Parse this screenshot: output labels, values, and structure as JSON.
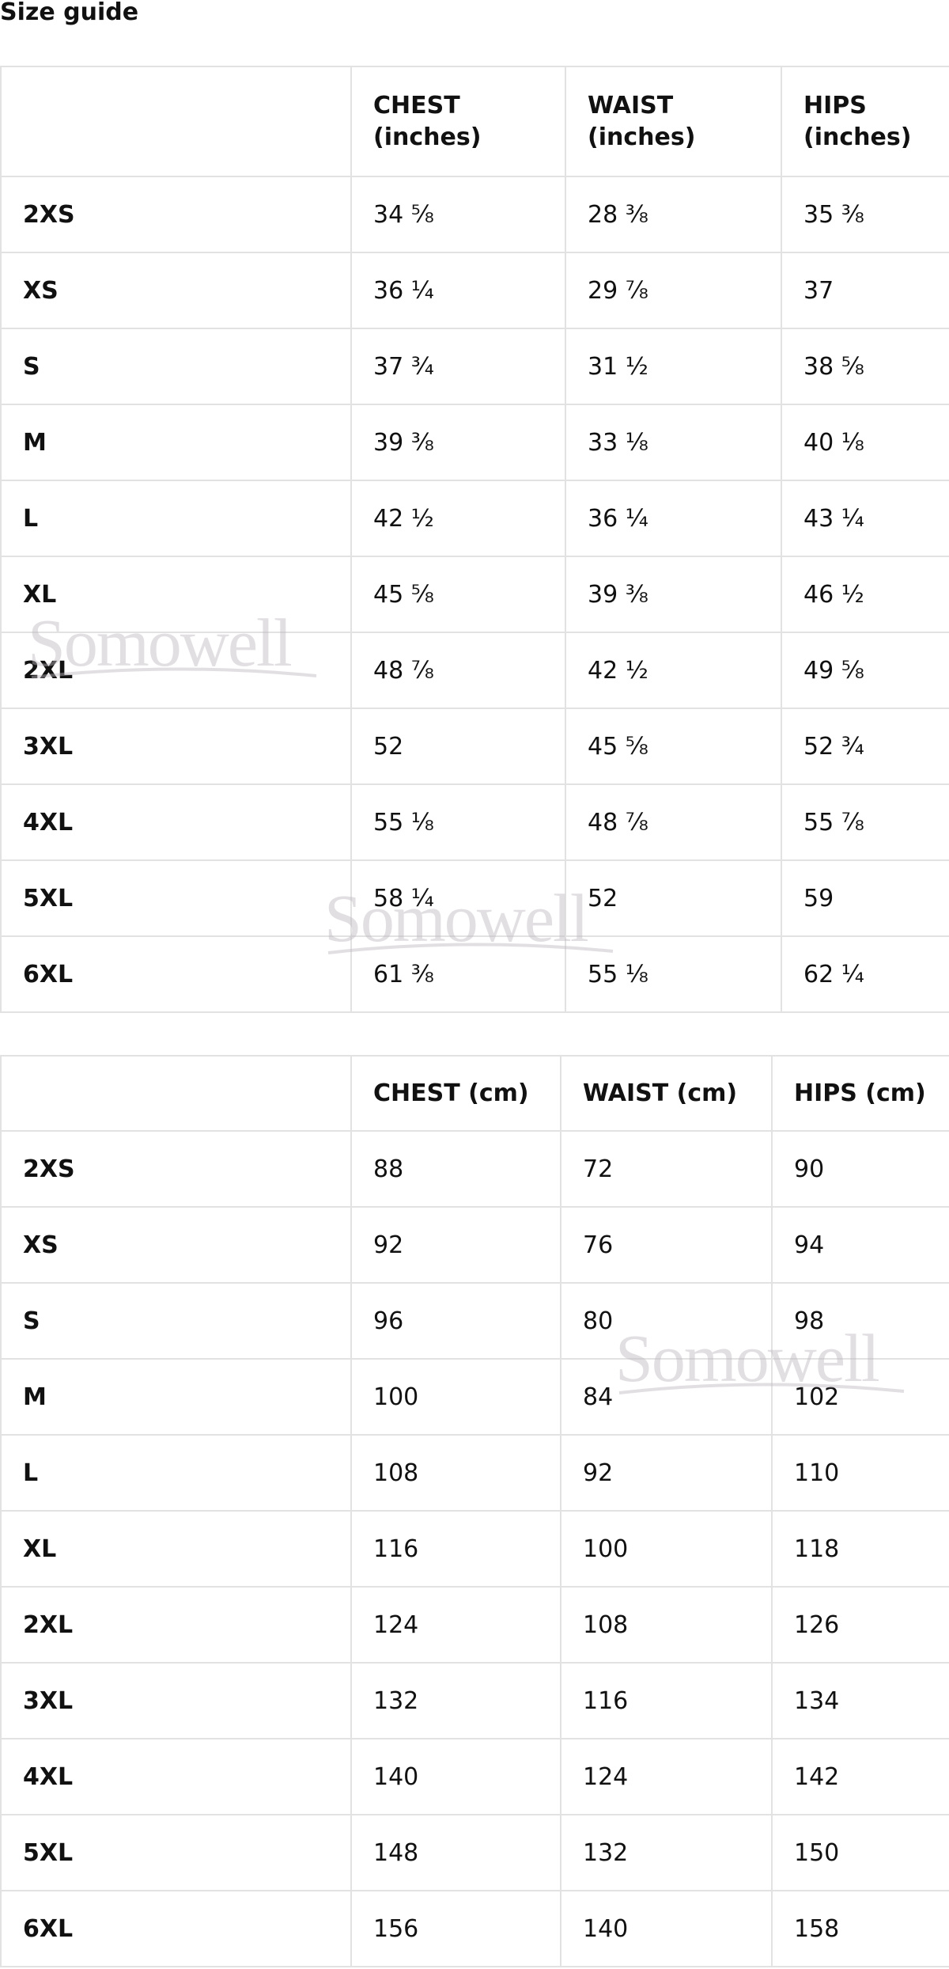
{
  "title": "Size guide",
  "watermark": "Somowell",
  "inches_table": {
    "headers": [
      "",
      "CHEST\n(inches)",
      "WAIST\n(inches)",
      "HIPS\n(inches)"
    ],
    "rows": [
      [
        "2XS",
        "34 ⅝",
        "28 ⅜",
        "35 ⅜"
      ],
      [
        "XS",
        "36 ¼",
        "29 ⅞",
        "37"
      ],
      [
        "S",
        "37 ¾",
        "31 ½",
        "38 ⅝"
      ],
      [
        "M",
        "39 ⅜",
        "33 ⅛",
        "40 ⅛"
      ],
      [
        "L",
        "42 ½",
        "36 ¼",
        "43 ¼"
      ],
      [
        "XL",
        "45 ⅝",
        "39 ⅜",
        "46 ½"
      ],
      [
        "2XL",
        "48 ⅞",
        "42 ½",
        "49 ⅝"
      ],
      [
        "3XL",
        "52",
        "45 ⅝",
        "52 ¾"
      ],
      [
        "4XL",
        "55 ⅛",
        "48 ⅞",
        "55 ⅞"
      ],
      [
        "5XL",
        "58 ¼",
        "52",
        "59"
      ],
      [
        "6XL",
        "61 ⅜",
        "55 ⅛",
        "62 ¼"
      ]
    ]
  },
  "cm_table": {
    "headers": [
      "",
      "CHEST (cm)",
      "WAIST (cm)",
      "HIPS (cm)"
    ],
    "rows": [
      [
        "2XS",
        "88",
        "72",
        "90"
      ],
      [
        "XS",
        "92",
        "76",
        "94"
      ],
      [
        "S",
        "96",
        "80",
        "98"
      ],
      [
        "M",
        "100",
        "84",
        "102"
      ],
      [
        "L",
        "108",
        "92",
        "110"
      ],
      [
        "XL",
        "116",
        "100",
        "118"
      ],
      [
        "2XL",
        "124",
        "108",
        "126"
      ],
      [
        "3XL",
        "132",
        "116",
        "134"
      ],
      [
        "4XL",
        "140",
        "124",
        "142"
      ],
      [
        "5XL",
        "148",
        "132",
        "150"
      ],
      [
        "6XL",
        "156",
        "140",
        "158"
      ]
    ]
  }
}
